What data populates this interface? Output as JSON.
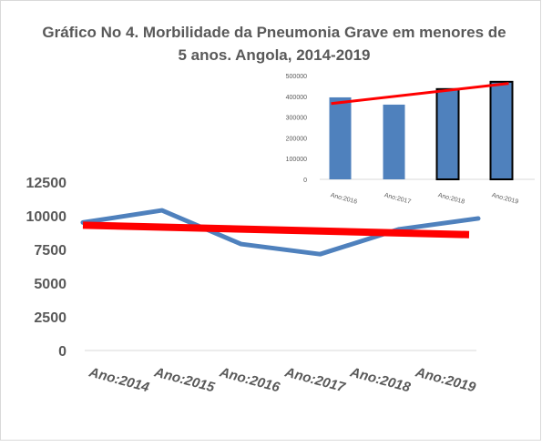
{
  "chart_data": [
    {
      "type": "line",
      "title": "Gráfico No 4. Morbilidade da Pneumonia  Grave em menores de 5 anos. Angola, 2014-2019",
      "categories": [
        "Ano:2014",
        "Ano:2015",
        "Ano:2016",
        "Ano:2017",
        "Ano:2018",
        "Ano:2019"
      ],
      "series": [
        {
          "values": [
            9500,
            10400,
            7900,
            7150,
            9000,
            9800
          ],
          "color": "#4f81bd"
        }
      ],
      "trendline": {
        "values": [
          9300,
          8600
        ],
        "color": "#ff0000"
      },
      "ylim": [
        0,
        12500
      ],
      "yticks": [
        "12500",
        "10000",
        "7500",
        "5000",
        "2500",
        "0"
      ],
      "xlabel": "",
      "ylabel": "",
      "grid": false,
      "legend": "none"
    },
    {
      "type": "bar",
      "categories": [
        "Ano:2016",
        "Ano:2017",
        "Ano:2018",
        "Ano:2019"
      ],
      "values": [
        395000,
        360000,
        435000,
        470000
      ],
      "highlighted": [
        false,
        false,
        true,
        true
      ],
      "trendline": {
        "values": [
          365000,
          462000
        ],
        "color": "#ff0000"
      },
      "ylim": [
        0,
        500000
      ],
      "yticks": [
        "500000",
        "400000",
        "300000",
        "200000",
        "100000",
        "0"
      ],
      "bar_color": "#4f81bd",
      "xlabel": "",
      "ylabel": "",
      "grid": false,
      "legend": "none"
    }
  ]
}
